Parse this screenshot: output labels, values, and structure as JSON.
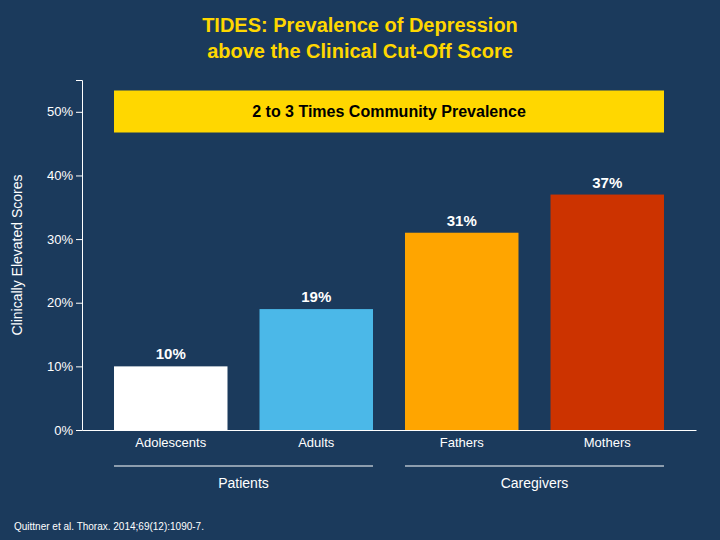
{
  "chart_data": {
    "type": "bar",
    "title": "TIDES: Prevalence of Depression",
    "subtitle": "above the Clinical Cut-Off Score",
    "categories": [
      "Adolescents",
      "Adults",
      "Fathers",
      "Mothers"
    ],
    "values": [
      10,
      19,
      31,
      37
    ],
    "value_labels": [
      "10%",
      "19%",
      "31%",
      "37%"
    ],
    "colors": [
      "#FFFFFF",
      "#4BB8E8",
      "#FFA500",
      "#CC3300"
    ],
    "ylabel": "Clinically Elevated Scores",
    "ylim": [
      0,
      55
    ],
    "yticks": [
      {
        "value": 0,
        "label": "0%"
      },
      {
        "value": 10,
        "label": "10%"
      },
      {
        "value": 20,
        "label": "20%"
      },
      {
        "value": 30,
        "label": "30%"
      },
      {
        "value": 40,
        "label": "40%"
      },
      {
        "value": 50,
        "label": "50%"
      }
    ],
    "group_labels": [
      "Patients",
      "Caregivers"
    ],
    "annotations": [
      "2 to 3 Times Community Prevalence"
    ],
    "source": "Quittner et al. Thorax. 2014;69(12):1090-7.",
    "data_labels": true,
    "grid": false
  }
}
